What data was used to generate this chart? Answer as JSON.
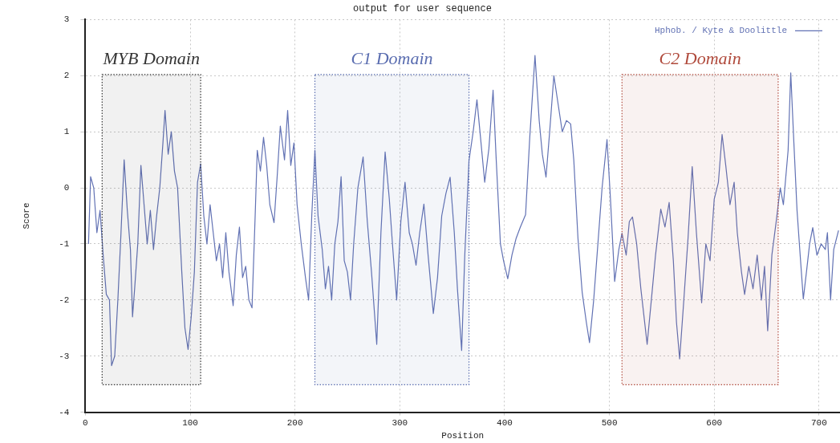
{
  "chart_data": {
    "type": "line",
    "title": "output for user sequence",
    "xlabel": "Position",
    "ylabel": "Score",
    "xlim": [
      0,
      720
    ],
    "xticks": [
      0,
      100,
      200,
      300,
      400,
      500,
      600,
      700
    ],
    "ylim": [
      -4,
      3
    ],
    "yticks": [
      -4,
      -3,
      -2,
      -1,
      0,
      1,
      2,
      3
    ],
    "grid": true,
    "legend": "top right",
    "marker": "none",
    "line_style": "solid",
    "bands": [
      {
        "axis": "x",
        "from": 16,
        "to": 110,
        "label": "MYB Domain",
        "color": "#333333"
      },
      {
        "axis": "x",
        "from": 219,
        "to": 366,
        "label": "C1 Domain",
        "color": "#5a6db0"
      },
      {
        "axis": "x",
        "from": 512,
        "to": 661,
        "label": "C2 Domain",
        "color": "#b04a3c"
      }
    ],
    "series": [
      {
        "name": "Hphob. / Kyte & Doolittle",
        "color": "#6272b4",
        "x": [
          3,
          5,
          8,
          11,
          14,
          17,
          20,
          23,
          25,
          28,
          31,
          34,
          37,
          40,
          43,
          45,
          47,
          50,
          53,
          56,
          59,
          62,
          65,
          68,
          71,
          74,
          76,
          79,
          82,
          85,
          88,
          92,
          95,
          98,
          101,
          104,
          107,
          110,
          113,
          116,
          119,
          122,
          125,
          128,
          131,
          134,
          137,
          141,
          144,
          147,
          150,
          153,
          156,
          159,
          162,
          164,
          167,
          170,
          173,
          176,
          180,
          183,
          186,
          190,
          193,
          196,
          199,
          202,
          206,
          210,
          213,
          216,
          219,
          222,
          226,
          229,
          232,
          235,
          238,
          241,
          244,
          247,
          250,
          253,
          256,
          260,
          265,
          269,
          273,
          278,
          282,
          286,
          290,
          293,
          297,
          301,
          305,
          309,
          312,
          315.5,
          319,
          323,
          327,
          332,
          336,
          340,
          344,
          348,
          352,
          355,
          359,
          362,
          366,
          370,
          373.6,
          377,
          381,
          385,
          389,
          392,
          396,
          399,
          403,
          407,
          411,
          415,
          420,
          424,
          429,
          433,
          436,
          439.5,
          443,
          447,
          451,
          455,
          459,
          463,
          466,
          470,
          474,
          478,
          481,
          485,
          489,
          493,
          497.7,
          501,
          505,
          509,
          512,
          516,
          519,
          522,
          526,
          530,
          536,
          540,
          544,
          549,
          553,
          557,
          561,
          564,
          567,
          571,
          575,
          579,
          583,
          588,
          592,
          596,
          600,
          604,
          607.5,
          611,
          615,
          619,
          622,
          626,
          629,
          633,
          637,
          641,
          645,
          648,
          651,
          655,
          659,
          663,
          666,
          670.5,
          673,
          676,
          679,
          682,
          685,
          688,
          691,
          694,
          698,
          702,
          706,
          708,
          711,
          714,
          718.6
        ],
        "values": [
          -1.0,
          0.2,
          0.0,
          -0.8,
          -0.4,
          -1.2,
          -1.9,
          -2.0,
          -3.17,
          -3.0,
          -2.0,
          -0.8,
          0.5,
          -0.4,
          -1.1,
          -2.3,
          -1.8,
          -1.0,
          0.4,
          -0.3,
          -1.0,
          -0.4,
          -1.1,
          -0.5,
          0.0,
          0.8,
          1.38,
          0.6,
          1.0,
          0.3,
          0.0,
          -1.5,
          -2.5,
          -2.88,
          -2.3,
          -1.5,
          0.1,
          0.43,
          -0.5,
          -1.0,
          -0.3,
          -0.8,
          -1.3,
          -1.0,
          -1.6,
          -0.8,
          -1.5,
          -2.1,
          -1.2,
          -0.7,
          -1.6,
          -1.4,
          -2.0,
          -2.14,
          -0.5,
          0.67,
          0.3,
          0.9,
          0.4,
          -0.3,
          -0.62,
          0.2,
          1.1,
          0.5,
          1.38,
          0.4,
          0.8,
          -0.3,
          -1.0,
          -1.6,
          -2.0,
          -0.5,
          0.67,
          -0.5,
          -1.1,
          -1.8,
          -1.4,
          -2.0,
          -1.0,
          -0.6,
          0.2,
          -1.3,
          -1.5,
          -2.0,
          -1.0,
          0.0,
          0.55,
          -0.6,
          -1.5,
          -2.79,
          -0.8,
          0.64,
          -0.2,
          -1.0,
          -2.0,
          -0.6,
          0.1,
          -0.8,
          -1.0,
          -1.38,
          -0.8,
          -0.29,
          -1.2,
          -2.24,
          -1.6,
          -0.5,
          -0.1,
          0.19,
          -0.8,
          -1.8,
          -2.9,
          -1.2,
          0.48,
          1.0,
          1.57,
          0.9,
          0.1,
          0.7,
          1.74,
          0.5,
          -1.0,
          -1.3,
          -1.62,
          -1.2,
          -0.9,
          -0.7,
          -0.48,
          0.9,
          2.36,
          1.2,
          0.6,
          0.19,
          1.0,
          2.0,
          1.5,
          1.0,
          1.2,
          1.14,
          0.5,
          -0.9,
          -1.86,
          -2.4,
          -2.76,
          -2.0,
          -1.0,
          0.0,
          0.86,
          -0.2,
          -1.67,
          -1.1,
          -0.81,
          -1.2,
          -0.6,
          -0.52,
          -1.0,
          -1.8,
          -2.79,
          -2.0,
          -1.2,
          -0.38,
          -0.7,
          -0.26,
          -1.3,
          -2.4,
          -3.05,
          -2.0,
          -0.9,
          0.38,
          -0.8,
          -2.05,
          -1.0,
          -1.3,
          -0.2,
          0.1,
          0.95,
          0.4,
          -0.3,
          0.1,
          -0.8,
          -1.5,
          -1.9,
          -1.4,
          -1.8,
          -1.2,
          -2.0,
          -1.4,
          -2.55,
          -1.2,
          -0.62,
          0.0,
          -0.3,
          0.67,
          2.05,
          0.8,
          -0.4,
          -1.2,
          -1.98,
          -1.5,
          -1.0,
          -0.71,
          -1.2,
          -1.0,
          -1.1,
          -0.8,
          -2.0,
          -1.1,
          -0.76
        ]
      }
    ]
  }
}
